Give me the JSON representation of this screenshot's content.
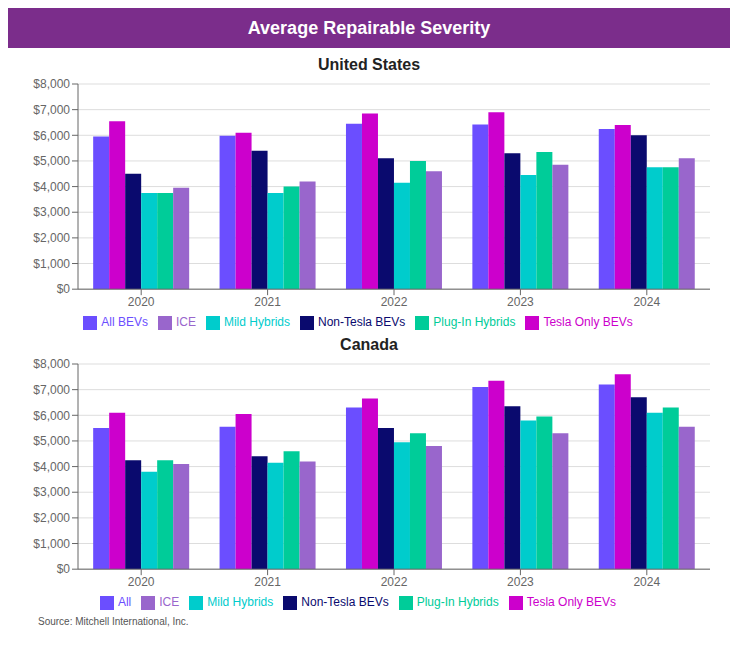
{
  "title": "Average Repairable Severity",
  "annotations": [
    "Source: Mitchell International, Inc."
  ],
  "chart_data": [
    {
      "type": "bar",
      "title": "United States",
      "categories": [
        "2020",
        "2021",
        "2022",
        "2023",
        "2024"
      ],
      "series": [
        {
          "name": "All BEVs",
          "color": "#6B4EFF",
          "values": [
            5950,
            5980,
            6450,
            6420,
            6250
          ]
        },
        {
          "name": "Tesla Only BEVs",
          "color": "#CC00CC",
          "values": [
            6550,
            6100,
            6850,
            6900,
            6400
          ]
        },
        {
          "name": "Non-Tesla BEVs",
          "color": "#0A0A6E",
          "values": [
            4500,
            5400,
            5100,
            5300,
            6000
          ]
        },
        {
          "name": "Mild Hybrids",
          "color": "#00CCCC",
          "values": [
            3750,
            3750,
            4150,
            4450,
            4750
          ]
        },
        {
          "name": "Plug-In Hybrids",
          "color": "#00CC99",
          "values": [
            3750,
            4000,
            5000,
            5350,
            4750
          ]
        },
        {
          "name": "ICE",
          "color": "#9966CC",
          "values": [
            3950,
            4200,
            4600,
            4850,
            5100
          ]
        }
      ],
      "ylim": [
        0,
        8000
      ],
      "yticks": [
        {
          "value": 0,
          "label": "$0"
        },
        {
          "value": 1000,
          "label": "$1,000"
        },
        {
          "value": 2000,
          "label": "$2,000"
        },
        {
          "value": 3000,
          "label": "$3,000"
        },
        {
          "value": 4000,
          "label": "$4,000"
        },
        {
          "value": 5000,
          "label": "$5,000"
        },
        {
          "value": 6000,
          "label": "$6,000"
        },
        {
          "value": 7000,
          "label": "$7,000"
        },
        {
          "value": 8000,
          "label": "$8,000"
        }
      ],
      "grid": true,
      "legend": "bottom"
    },
    {
      "type": "bar",
      "title": "Canada",
      "categories": [
        "2020",
        "2021",
        "2022",
        "2023",
        "2024"
      ],
      "series": [
        {
          "name": "All",
          "color": "#6B4EFF",
          "values": [
            5500,
            5550,
            6300,
            7100,
            7200
          ]
        },
        {
          "name": "Tesla Only BEVs",
          "color": "#CC00CC",
          "values": [
            6100,
            6050,
            6650,
            7350,
            7600
          ]
        },
        {
          "name": "Non-Tesla BEVs",
          "color": "#0A0A6E",
          "values": [
            4250,
            4400,
            5500,
            6350,
            6700
          ]
        },
        {
          "name": "Mild Hybrids",
          "color": "#00CCCC",
          "values": [
            3800,
            4150,
            4950,
            5800,
            6100
          ]
        },
        {
          "name": "Plug-In Hybrids",
          "color": "#00CC99",
          "values": [
            4250,
            4600,
            5300,
            5950,
            6300
          ]
        },
        {
          "name": "ICE",
          "color": "#9966CC",
          "values": [
            4100,
            4200,
            4800,
            5300,
            5550
          ]
        }
      ],
      "ylim": [
        0,
        8000
      ],
      "yticks": [
        {
          "value": 0,
          "label": "$0"
        },
        {
          "value": 1000,
          "label": "$1,000"
        },
        {
          "value": 2000,
          "label": "$2,000"
        },
        {
          "value": 3000,
          "label": "$3,000"
        },
        {
          "value": 4000,
          "label": "$4,000"
        },
        {
          "value": 5000,
          "label": "$5,000"
        },
        {
          "value": 6000,
          "label": "$6,000"
        },
        {
          "value": 7000,
          "label": "$7,000"
        },
        {
          "value": 8000,
          "label": "$8,000"
        }
      ],
      "grid": true,
      "legend": "bottom"
    }
  ]
}
